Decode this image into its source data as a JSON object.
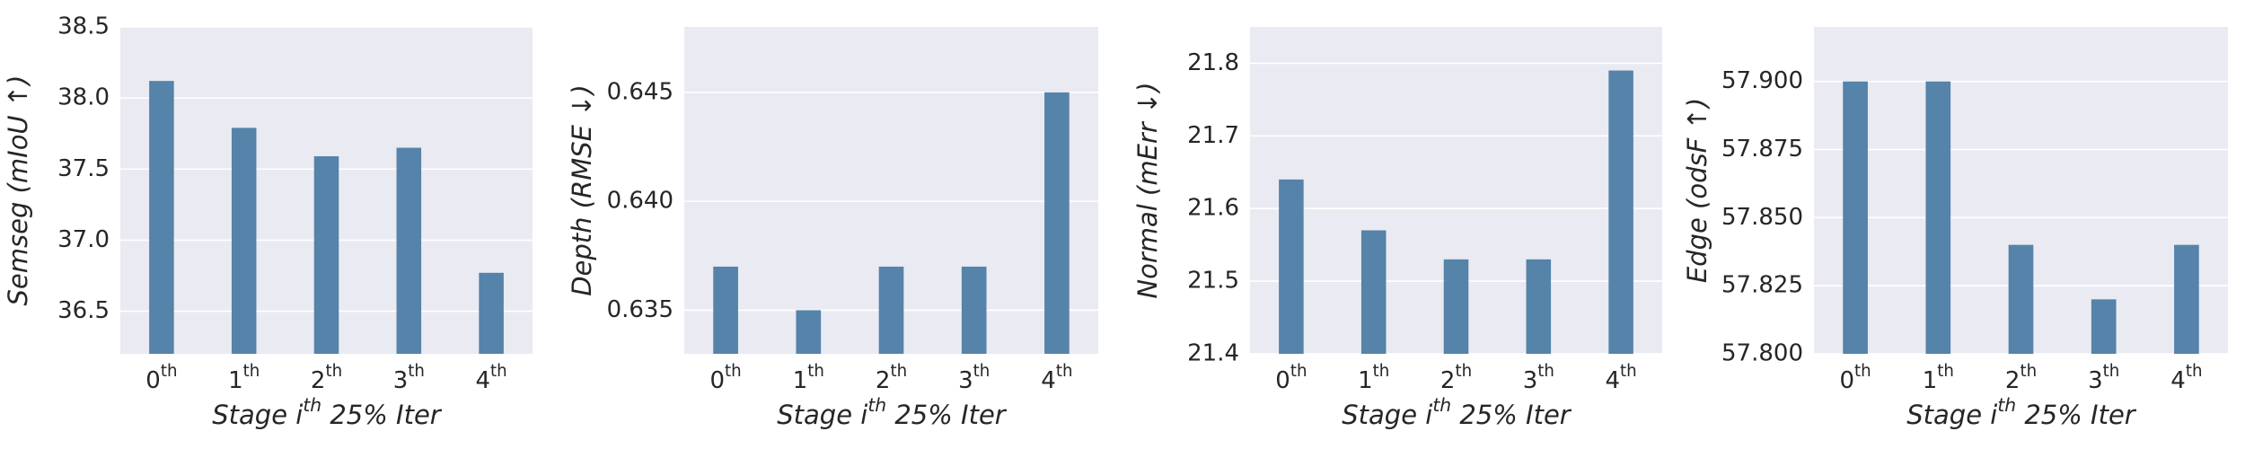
{
  "chart_data": [
    {
      "type": "bar",
      "y_label": "Semseg (mIoU ↑)",
      "x_label": "Stage ith 25% Iter",
      "categories": [
        "0th",
        "1th",
        "2th",
        "3th",
        "4th"
      ],
      "values": [
        38.12,
        37.79,
        37.59,
        37.65,
        36.77
      ],
      "color": "#5583a9",
      "ylim": [
        36.2,
        38.5
      ],
      "yticks": [
        36.5,
        {
          "value": 37,
          "label": "37.0"
        },
        37.5,
        {
          "value": 38,
          "label": "38.0"
        },
        38.5
      ],
      "grid": true
    },
    {
      "type": "bar",
      "y_label": "Depth (RMSE ↓)",
      "x_label": "Stage ith 25% Iter",
      "categories": [
        "0th",
        "1th",
        "2th",
        "3th",
        "4th"
      ],
      "values": [
        0.637,
        0.635,
        0.637,
        0.637,
        0.645
      ],
      "color": "#5583a9",
      "ylim": [
        0.633,
        0.648
      ],
      "yticks": [
        0.635,
        {
          "value": 0.64,
          "label": "0.640"
        },
        0.645
      ],
      "grid": true
    },
    {
      "type": "bar",
      "y_label": "Normal (mErr ↓)",
      "x_label": "Stage ith 25% Iter",
      "categories": [
        "0th",
        "1th",
        "2th",
        "3th",
        "4th"
      ],
      "values": [
        21.64,
        21.57,
        21.53,
        21.53,
        21.79
      ],
      "color": "#5583a9",
      "ylim": [
        21.4,
        21.85
      ],
      "yticks": [
        21.4,
        21.5,
        21.6,
        21.7,
        21.8
      ],
      "grid": true
    },
    {
      "type": "bar",
      "y_label": "Edge (odsF ↑)",
      "x_label": "Stage ith 25% Iter",
      "categories": [
        "0th",
        "1th",
        "2th",
        "3th",
        "4th"
      ],
      "values": [
        57.9,
        57.9,
        57.84,
        57.82,
        57.84
      ],
      "color": "#5583a9",
      "ylim": [
        57.8,
        57.92
      ],
      "yticks": [
        {
          "value": 57.8,
          "label": "57.800"
        },
        {
          "value": 57.825,
          "label": "57.825"
        },
        {
          "value": 57.85,
          "label": "57.850"
        },
        {
          "value": 57.875,
          "label": "57.875"
        },
        {
          "value": 57.9,
          "label": "57.900"
        }
      ],
      "grid": true
    }
  ]
}
